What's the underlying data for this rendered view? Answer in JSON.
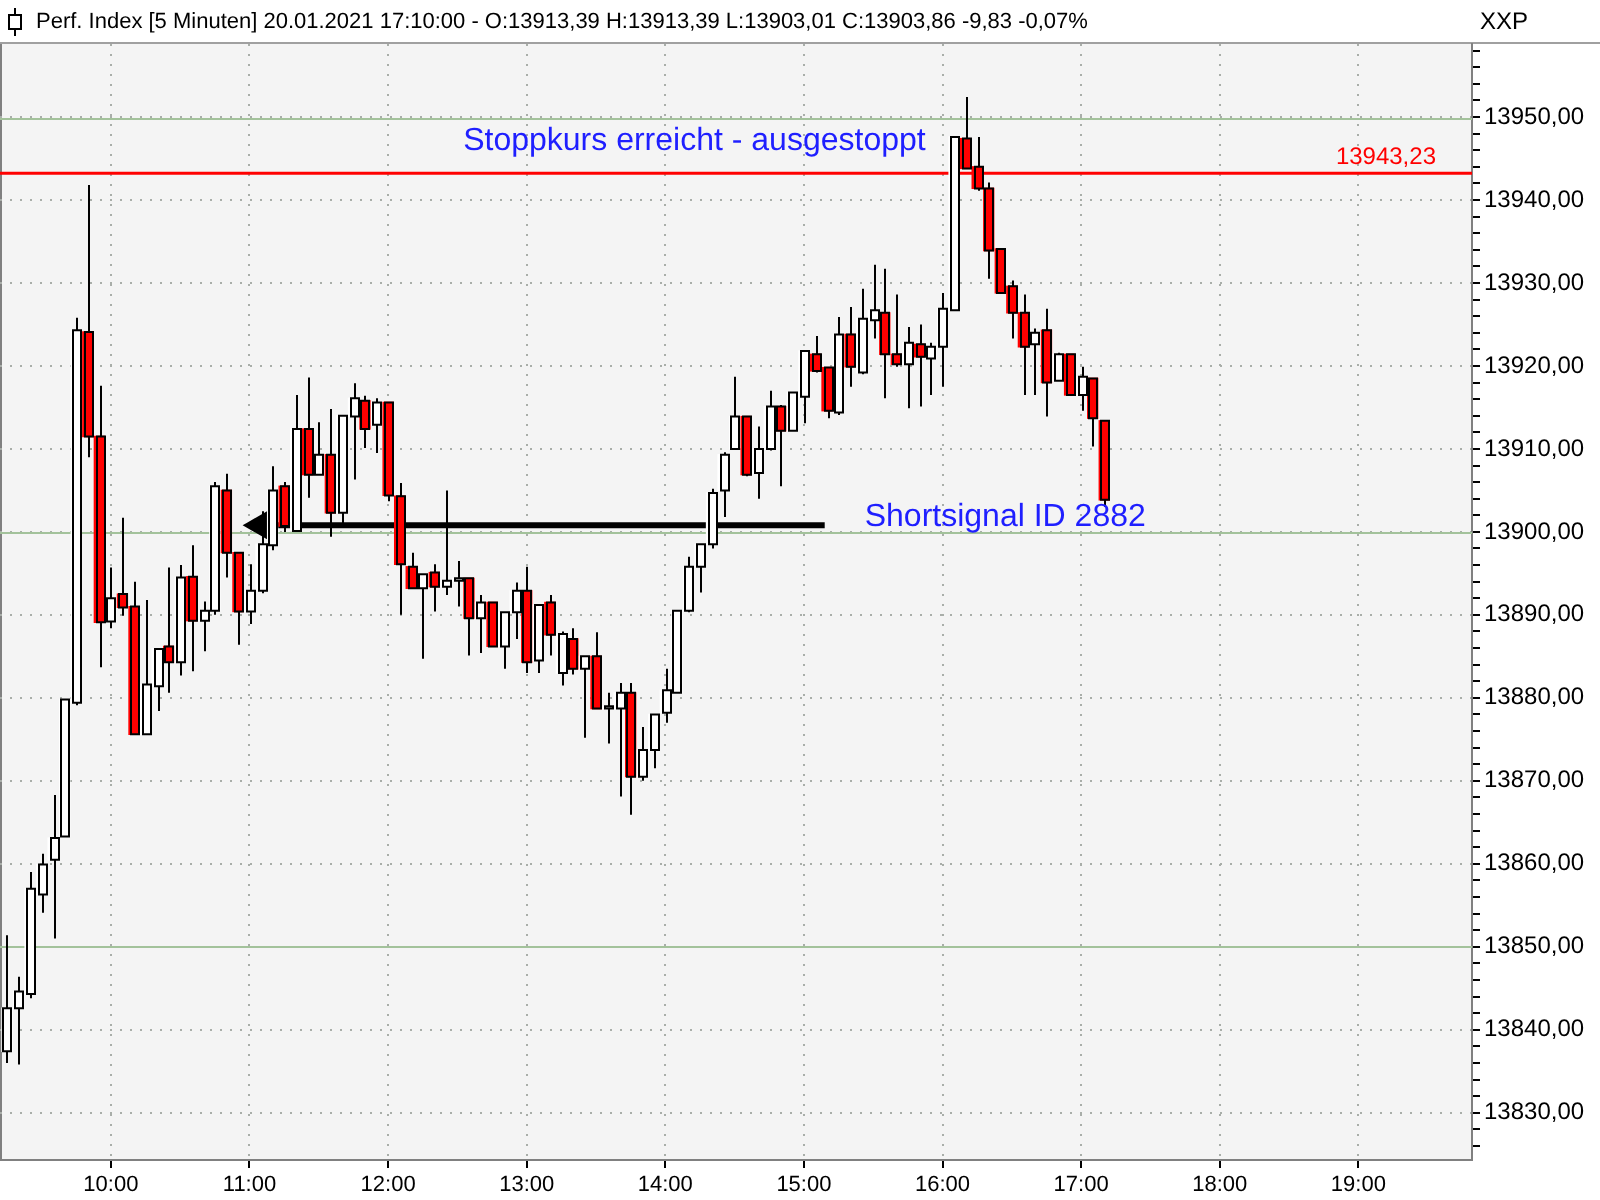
{
  "chart_data": {
    "type": "candlestick",
    "title": "Perf. Index [5 Minuten] 20.01.2021 17:10:00 - O:13913,39 H:13913,39 L:13903,01 C:13903,86 -9,83 -0,07%",
    "x": [
      9.25,
      9.3333,
      9.4167,
      9.5,
      9.5833,
      9.6667,
      9.75,
      9.8333,
      9.9167,
      10,
      10.0833,
      10.1667,
      10.25,
      10.3333,
      10.4167,
      10.5,
      10.5833,
      10.6667,
      10.75,
      10.8333,
      10.9167,
      11,
      11.0833,
      11.1667,
      11.25,
      11.3333,
      11.4167,
      11.5,
      11.5833,
      11.6667,
      11.75,
      11.8333,
      11.9167,
      12,
      12.0833,
      12.1667,
      12.25,
      12.3333,
      12.4167,
      12.5,
      12.5833,
      12.6667,
      12.75,
      12.8333,
      12.9167,
      13,
      13.0833,
      13.1667,
      13.25,
      13.3333,
      13.4167,
      13.5,
      13.5833,
      13.6667,
      13.75,
      13.8333,
      13.9167,
      14,
      14.0833,
      14.1667,
      14.25,
      14.3333,
      14.4167,
      14.5,
      14.5833,
      14.6667,
      14.75,
      14.8333,
      14.9167,
      15,
      15.0833,
      15.1667,
      15.25,
      15.3333,
      15.4167,
      15.5,
      15.5833,
      15.6667,
      15.75,
      15.8333,
      15.9167,
      16,
      16.0833,
      16.1667,
      16.25,
      16.3333,
      16.4167,
      16.5,
      16.5833,
      16.6667,
      16.75,
      16.8333,
      16.9167,
      17,
      17.0833,
      17.1667
    ],
    "ohlc": [
      [
        13837.4,
        13851.4,
        13836,
        13842.6
      ],
      [
        13842.6,
        13846.4,
        13835.8,
        13844.6
      ],
      [
        13844.3,
        13859.0,
        13843.8,
        13857.0
      ],
      [
        13856.3,
        13861.2,
        13854.1,
        13859.9
      ],
      [
        13860.5,
        13868.3,
        13851.0,
        13863.1
      ],
      [
        13863.3,
        13879.8,
        13863.3,
        13879.8
      ],
      [
        13879.4,
        13925.8,
        13879.1,
        13924.3
      ],
      [
        13924.1,
        13941.8,
        13909.0,
        13911.5
      ],
      [
        13911.5,
        13917.6,
        13883.7,
        13889.1
      ],
      [
        13889.2,
        13895.7,
        13888.4,
        13892.0
      ],
      [
        13892.5,
        13901.7,
        13889.9,
        13890.9
      ],
      [
        13891.0,
        13894.0,
        13875.6,
        13875.6
      ],
      [
        13875.6,
        13891.8,
        13875.6,
        13881.6
      ],
      [
        13881.4,
        13885.9,
        13878.4,
        13885.9
      ],
      [
        13886.2,
        13895.7,
        13880.6,
        13884.3
      ],
      [
        13884.3,
        13896.0,
        13882.7,
        13894.5
      ],
      [
        13894.6,
        13898.4,
        13883.2,
        13889.3
      ],
      [
        13889.3,
        13891.6,
        13885.6,
        13890.5
      ],
      [
        13890.5,
        13906.0,
        13890.0,
        13905.5
      ],
      [
        13905.0,
        13907.0,
        13894.5,
        13897.5
      ],
      [
        13897.5,
        13897.5,
        13886.4,
        13890.4
      ],
      [
        13890.4,
        13896.1,
        13888.9,
        13892.9
      ],
      [
        13892.9,
        13902.5,
        13892.6,
        13898.5
      ],
      [
        13898.4,
        13907.9,
        13897.8,
        13905.0
      ],
      [
        13905.5,
        13906.0,
        13900.0,
        13900.7
      ],
      [
        13900.1,
        13916.5,
        13900.0,
        13912.4
      ],
      [
        13912.4,
        13918.6,
        13904.1,
        13906.9
      ],
      [
        13906.9,
        13913.2,
        13906.9,
        13909.3
      ],
      [
        13909.3,
        13914.8,
        13899.4,
        13902.3
      ],
      [
        13902.3,
        13914.0,
        13900.9,
        13914.0
      ],
      [
        13913.9,
        13917.9,
        13906.3,
        13916.1
      ],
      [
        13915.8,
        13916.4,
        13910.1,
        13912.4
      ],
      [
        13912.9,
        13916.1,
        13909.5,
        13915.6
      ],
      [
        13915.6,
        13915.6,
        13903.7,
        13904.4
      ],
      [
        13904.3,
        13905.9,
        13890.0,
        13896.1
      ],
      [
        13895.8,
        13897.5,
        13893.2,
        13893.2
      ],
      [
        13893.2,
        13894.9,
        13884.7,
        13894.9
      ],
      [
        13895.1,
        13896.1,
        13890.4,
        13893.4
      ],
      [
        13893.4,
        13905.0,
        13892.4,
        13894.1
      ],
      [
        13894.1,
        13896.5,
        13891.0,
        13894.4
      ],
      [
        13894.4,
        13894.4,
        13885.1,
        13889.6
      ],
      [
        13889.6,
        13892.4,
        13885.4,
        13891.5
      ],
      [
        13891.5,
        13891.5,
        13886.2,
        13886.2
      ],
      [
        13886.2,
        13890.3,
        13883.5,
        13890.3
      ],
      [
        13890.3,
        13893.9,
        13887.1,
        13892.9
      ],
      [
        13892.9,
        13895.8,
        13883.0,
        13884.3
      ],
      [
        13884.5,
        13891.2,
        13883.0,
        13891.2
      ],
      [
        13891.5,
        13892.4,
        13885.1,
        13887.6
      ],
      [
        13883.0,
        13888.0,
        13881.5,
        13887.7
      ],
      [
        13887.1,
        13888.4,
        13882.8,
        13883.5
      ],
      [
        13883.5,
        13885.0,
        13875.2,
        13885.0
      ],
      [
        13885.0,
        13887.9,
        13878.7,
        13878.7
      ],
      [
        13878.7,
        13880.6,
        13874.5,
        13879.0
      ],
      [
        13878.7,
        13881.8,
        13868.1,
        13880.6
      ],
      [
        13880.6,
        13881.8,
        13865.9,
        13870.5
      ],
      [
        13870.5,
        13876.5,
        13870.0,
        13873.7
      ],
      [
        13873.7,
        13878.0,
        13871.5,
        13878.0
      ],
      [
        13878.2,
        13883.5,
        13877.0,
        13880.9
      ],
      [
        13880.6,
        13890.5,
        13880.6,
        13890.5
      ],
      [
        13890.5,
        13897.0,
        13890.3,
        13895.8
      ],
      [
        13895.8,
        13898.5,
        13892.7,
        13898.5
      ],
      [
        13898.5,
        13905.2,
        13898.0,
        13904.7
      ],
      [
        13905.0,
        13909.6,
        13901.8,
        13909.3
      ],
      [
        13910.0,
        13918.7,
        13910.0,
        13913.9
      ],
      [
        13913.9,
        13913.9,
        13906.7,
        13906.9
      ],
      [
        13907.1,
        13912.7,
        13904.0,
        13910.0
      ],
      [
        13910.0,
        13917.0,
        13909.8,
        13915.1
      ],
      [
        13915.1,
        13915.3,
        13905.5,
        13912.2
      ],
      [
        13912.2,
        13916.8,
        13912.2,
        13916.8
      ],
      [
        13916.3,
        13921.8,
        13913.1,
        13921.8
      ],
      [
        13921.4,
        13923.6,
        13919.2,
        13919.4
      ],
      [
        13919.8,
        13919.8,
        13913.7,
        13914.6
      ],
      [
        13914.4,
        13925.9,
        13914.1,
        13923.8
      ],
      [
        13923.8,
        13927.1,
        13917.5,
        13919.9
      ],
      [
        13919.2,
        13929.3,
        13919.0,
        13925.7
      ],
      [
        13925.5,
        13932.2,
        13923.3,
        13926.7
      ],
      [
        13926.4,
        13931.7,
        13916.1,
        13921.4
      ],
      [
        13921.4,
        13928.6,
        13919.9,
        13920.2
      ],
      [
        13920.2,
        13924.7,
        13914.9,
        13922.8
      ],
      [
        13922.6,
        13925.0,
        13915.1,
        13921.1
      ],
      [
        13920.9,
        13922.8,
        13916.5,
        13922.3
      ],
      [
        13922.3,
        13928.8,
        13917.5,
        13926.9
      ],
      [
        13926.7,
        13947.6,
        13926.7,
        13947.6
      ],
      [
        13947.4,
        13952.4,
        13943.8,
        13943.8
      ],
      [
        13944.0,
        13947.6,
        13941.1,
        13941.4
      ],
      [
        13941.4,
        13942.1,
        13930.5,
        13933.9
      ],
      [
        13934.1,
        13934.1,
        13928.8,
        13928.8
      ],
      [
        13929.6,
        13930.3,
        13923.3,
        13926.4
      ],
      [
        13926.4,
        13928.6,
        13916.5,
        13922.3
      ],
      [
        13922.6,
        13924.5,
        13916.5,
        13924.0
      ],
      [
        13924.3,
        13926.9,
        13913.9,
        13918.0
      ],
      [
        13918.2,
        13921.6,
        13918.2,
        13921.4
      ],
      [
        13921.4,
        13921.4,
        13916.5,
        13916.5
      ],
      [
        13916.5,
        13919.9,
        13914.6,
        13918.7
      ],
      [
        13918.5,
        13918.5,
        13910.3,
        13913.7
      ],
      [
        13913.39,
        13913.39,
        13903.01,
        13903.86
      ]
    ],
    "colors": [
      "#ffffff",
      "#ffffff",
      "#ffffff",
      "#ffffff",
      "#ffffff",
      "#ffffff",
      "#ffffff",
      "#ff0000",
      "#ff0000",
      "#ffffff",
      "#ff0000",
      "#ff0000",
      "#ffffff",
      "#ffffff",
      "#ff0000",
      "#ffffff",
      "#ff0000",
      "#ffffff",
      "#ffffff",
      "#ff0000",
      "#ff0000",
      "#ffffff",
      "#ffffff",
      "#ffffff",
      "#ff0000",
      "#ffffff",
      "#ff0000",
      "#ffffff",
      "#ff0000",
      "#ffffff",
      "#ffffff",
      "#ff0000",
      "#ffffff",
      "#ff0000",
      "#ff0000",
      "#ff0000",
      "#ffffff",
      "#ff0000",
      "#ffffff",
      "#ffffff",
      "#ff0000",
      "#ffffff",
      "#ff0000",
      "#ffffff",
      "#ffffff",
      "#ff0000",
      "#ffffff",
      "#ff0000",
      "#ffffff",
      "#ff0000",
      "#ffffff",
      "#ff0000",
      "#ffffff",
      "#ffffff",
      "#ff0000",
      "#ffffff",
      "#ffffff",
      "#ffffff",
      "#ffffff",
      "#ffffff",
      "#ffffff",
      "#ffffff",
      "#ffffff",
      "#ffffff",
      "#ff0000",
      "#ffffff",
      "#ffffff",
      "#ff0000",
      "#ffffff",
      "#ffffff",
      "#ff0000",
      "#ff0000",
      "#ffffff",
      "#ff0000",
      "#ffffff",
      "#ffffff",
      "#ff0000",
      "#ff0000",
      "#ffffff",
      "#ff0000",
      "#ffffff",
      "#ffffff",
      "#ffffff",
      "#ff0000",
      "#ff0000",
      "#ff0000",
      "#ff0000",
      "#ff0000",
      "#ff0000",
      "#ffffff",
      "#ff0000",
      "#ffffff",
      "#ff0000",
      "#ffffff",
      "#ff0000",
      "#ff0000"
    ],
    "series": [
      {
        "type": "line",
        "x": [
          11.08,
          15.15
        ],
        "values": [
          13900.8,
          13900.8
        ],
        "color": "#000000",
        "marker": "triangle"
      }
    ],
    "xlim": [
      9.2,
      19.82
    ],
    "ylim": [
      13824.3,
      13958.8
    ],
    "xticks": [
      {
        "value": 10,
        "label": "10:00"
      },
      {
        "value": 11,
        "label": "11:00"
      },
      {
        "value": 12,
        "label": "12:00"
      },
      {
        "value": 13,
        "label": "13:00"
      },
      {
        "value": 14,
        "label": "14:00"
      },
      {
        "value": 15,
        "label": "15:00"
      },
      {
        "value": 16,
        "label": "16:00"
      },
      {
        "value": 17,
        "label": "17:00"
      },
      {
        "value": 18,
        "label": "18:00"
      },
      {
        "value": 19,
        "label": "19:00"
      }
    ],
    "yticks": [
      {
        "value": 13826,
        "label": null
      },
      {
        "value": 13828,
        "label": null
      },
      {
        "value": 13830,
        "label": "13830,00"
      },
      {
        "value": 13832,
        "label": null
      },
      {
        "value": 13834,
        "label": null
      },
      {
        "value": 13836,
        "label": null
      },
      {
        "value": 13838,
        "label": null
      },
      {
        "value": 13840,
        "label": "13840,00"
      },
      {
        "value": 13842,
        "label": null
      },
      {
        "value": 13844,
        "label": null
      },
      {
        "value": 13846,
        "label": null
      },
      {
        "value": 13848,
        "label": null
      },
      {
        "value": 13850,
        "label": "13850,00"
      },
      {
        "value": 13852,
        "label": null
      },
      {
        "value": 13854,
        "label": null
      },
      {
        "value": 13856,
        "label": null
      },
      {
        "value": 13858,
        "label": null
      },
      {
        "value": 13860,
        "label": "13860,00"
      },
      {
        "value": 13862,
        "label": null
      },
      {
        "value": 13864,
        "label": null
      },
      {
        "value": 13866,
        "label": null
      },
      {
        "value": 13868,
        "label": null
      },
      {
        "value": 13870,
        "label": "13870,00"
      },
      {
        "value": 13872,
        "label": null
      },
      {
        "value": 13874,
        "label": null
      },
      {
        "value": 13876,
        "label": null
      },
      {
        "value": 13878,
        "label": null
      },
      {
        "value": 13880,
        "label": "13880,00"
      },
      {
        "value": 13882,
        "label": null
      },
      {
        "value": 13884,
        "label": null
      },
      {
        "value": 13886,
        "label": null
      },
      {
        "value": 13888,
        "label": null
      },
      {
        "value": 13890,
        "label": "13890,00"
      },
      {
        "value": 13892,
        "label": null
      },
      {
        "value": 13894,
        "label": null
      },
      {
        "value": 13896,
        "label": null
      },
      {
        "value": 13898,
        "label": null
      },
      {
        "value": 13900,
        "label": "13900,00"
      },
      {
        "value": 13902,
        "label": null
      },
      {
        "value": 13904,
        "label": null
      },
      {
        "value": 13906,
        "label": null
      },
      {
        "value": 13908,
        "label": null
      },
      {
        "value": 13910,
        "label": "13910,00"
      },
      {
        "value": 13912,
        "label": null
      },
      {
        "value": 13914,
        "label": null
      },
      {
        "value": 13916,
        "label": null
      },
      {
        "value": 13918,
        "label": null
      },
      {
        "value": 13920,
        "label": "13920,00"
      },
      {
        "value": 13922,
        "label": null
      },
      {
        "value": 13924,
        "label": null
      },
      {
        "value": 13926,
        "label": null
      },
      {
        "value": 13928,
        "label": null
      },
      {
        "value": 13930,
        "label": "13930,00"
      },
      {
        "value": 13932,
        "label": null
      },
      {
        "value": 13934,
        "label": null
      },
      {
        "value": 13936,
        "label": null
      },
      {
        "value": 13938,
        "label": null
      },
      {
        "value": 13940,
        "label": "13940,00"
      },
      {
        "value": 13942,
        "label": null
      },
      {
        "value": 13944,
        "label": null
      },
      {
        "value": 13946,
        "label": null
      },
      {
        "value": 13948,
        "label": null
      },
      {
        "value": 13950,
        "label": "13950,00"
      },
      {
        "value": 13952,
        "label": null
      },
      {
        "value": 13954,
        "label": null
      },
      {
        "value": 13956,
        "label": null
      },
      {
        "value": 13958,
        "label": null
      }
    ],
    "grid": true,
    "ref_lines": [
      {
        "axis": "y",
        "value": 13943.23,
        "label": "13943,23",
        "color": "#ff0000"
      }
    ],
    "annotations": [
      "XXP",
      {
        "text": "Stoppkurs erreicht - ausgestoppt",
        "x": 14.21,
        "y": 13943.23
      },
      {
        "text": "Shortsignal ID 2882",
        "x": 15.15,
        "y": 13900.8
      }
    ]
  }
}
